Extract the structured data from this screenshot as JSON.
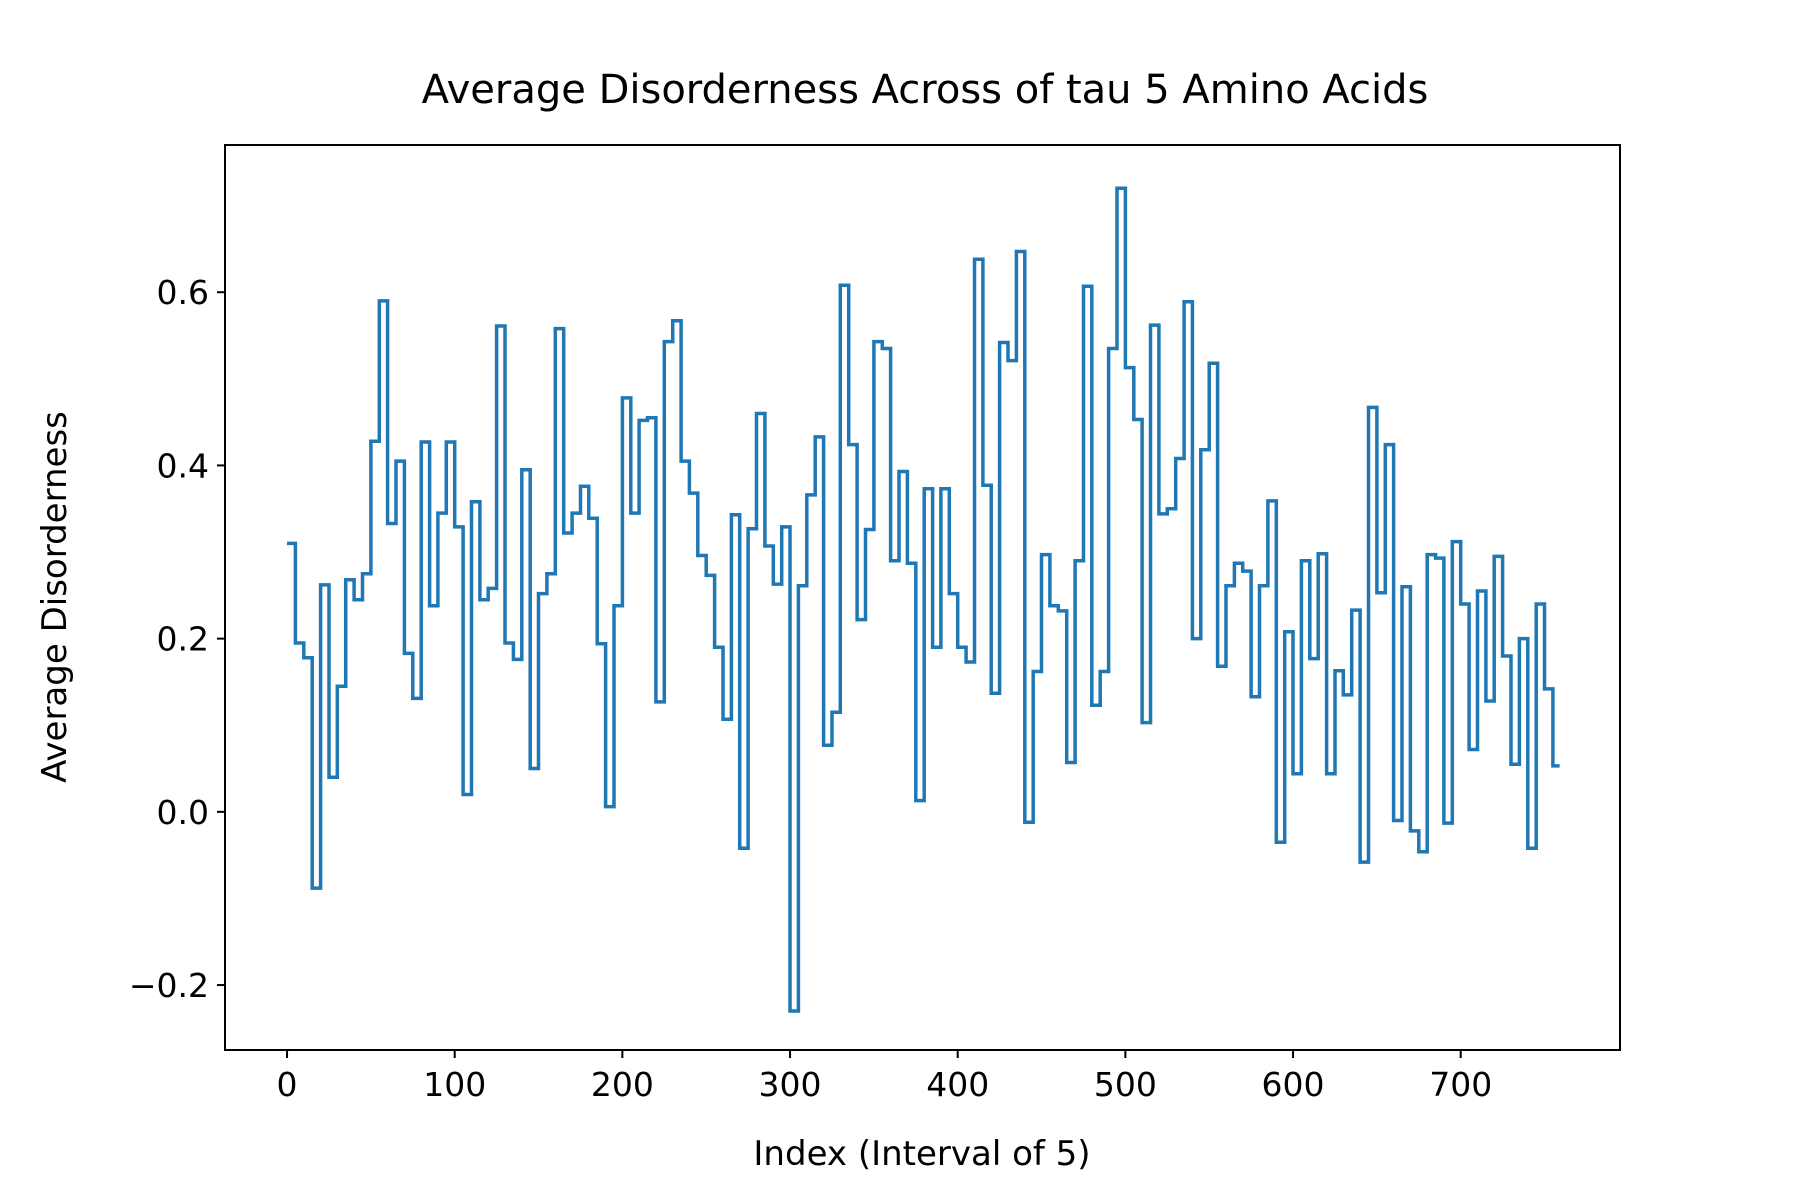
{
  "chart_data": {
    "type": "line",
    "title": "Average Disorderness Across of tau 5 Amino Acids",
    "xlabel": "Index (Interval of 5)",
    "ylabel": "Average Disorderness",
    "xlim": [
      -37,
      795
    ],
    "ylim": [
      -0.275,
      0.77
    ],
    "xticks": [
      0,
      100,
      200,
      300,
      400,
      500,
      600,
      700
    ],
    "yticks": [
      -0.2,
      0.0,
      0.2,
      0.4,
      0.6
    ],
    "ytick_labels": [
      "−0.2",
      "0.0",
      "0.2",
      "0.4",
      "0.6"
    ],
    "grid": false,
    "color": "#1f77b4",
    "series": [
      {
        "x": [
          0,
          5,
          10,
          15,
          20,
          25,
          30,
          35,
          40,
          45,
          50,
          55,
          60,
          65,
          70,
          75,
          80,
          85,
          90,
          95,
          100,
          105,
          110,
          115,
          120,
          125,
          130,
          135,
          140,
          145,
          150,
          155,
          160,
          165,
          170,
          175,
          180,
          185,
          190,
          195,
          200,
          205,
          210,
          215,
          220,
          225,
          230,
          235,
          240,
          245,
          250,
          255,
          260,
          265,
          270,
          275,
          280,
          285,
          290,
          295,
          300,
          305,
          310,
          315,
          320,
          325,
          330,
          335,
          340,
          345,
          350,
          355,
          360,
          365,
          370,
          375,
          380,
          385,
          390,
          395,
          400,
          405,
          410,
          415,
          420,
          425,
          430,
          435,
          440,
          445,
          450,
          455,
          460,
          465,
          470,
          475,
          480,
          485,
          490,
          495,
          500,
          505,
          510,
          515,
          520,
          525,
          530,
          535,
          540,
          545,
          550,
          555,
          560,
          565,
          570,
          575,
          580,
          585,
          590,
          595,
          600,
          605,
          610,
          615,
          620,
          625,
          630,
          635,
          640,
          645,
          650,
          655,
          660,
          665,
          670,
          675,
          680,
          685,
          690,
          695,
          700,
          705,
          710,
          715,
          720,
          725,
          730,
          735,
          740,
          745,
          750,
          755
        ],
        "values": [
          0.31,
          0.195,
          0.178,
          -0.088,
          0.262,
          0.04,
          0.145,
          0.268,
          0.245,
          0.275,
          0.428,
          0.59,
          0.333,
          0.405,
          0.183,
          0.131,
          0.427,
          0.238,
          0.345,
          0.427,
          0.329,
          0.02,
          0.358,
          0.245,
          0.258,
          0.561,
          0.195,
          0.176,
          0.395,
          0.05,
          0.252,
          0.275,
          0.558,
          0.322,
          0.345,
          0.376,
          0.339,
          0.194,
          0.006,
          0.238,
          0.478,
          0.345,
          0.452,
          0.455,
          0.127,
          0.543,
          0.567,
          0.405,
          0.368,
          0.296,
          0.273,
          0.19,
          0.107,
          0.343,
          -0.042,
          0.327,
          0.46,
          0.307,
          0.263,
          0.329,
          -0.23,
          0.261,
          0.366,
          0.433,
          0.077,
          0.115,
          0.608,
          0.424,
          0.222,
          0.326,
          0.543,
          0.535,
          0.29,
          0.393,
          0.287,
          0.013,
          0.373,
          0.19,
          0.373,
          0.252,
          0.19,
          0.173,
          0.638,
          0.377,
          0.137,
          0.542,
          0.521,
          0.647,
          -0.012,
          0.162,
          0.297,
          0.238,
          0.232,
          0.057,
          0.29,
          0.607,
          0.123,
          0.162,
          0.535,
          0.72,
          0.513,
          0.453,
          0.103,
          0.562,
          0.344,
          0.35,
          0.408,
          0.589,
          0.2,
          0.418,
          0.518,
          0.168,
          0.261,
          0.287,
          0.278,
          0.133,
          0.261,
          0.359,
          -0.035,
          0.208,
          0.044,
          0.29,
          0.177,
          0.298,
          0.044,
          0.163,
          0.135,
          0.233,
          -0.058,
          0.467,
          0.253,
          0.424,
          -0.01,
          0.26,
          -0.022,
          -0.046,
          0.297,
          0.293,
          -0.013,
          0.312,
          0.24,
          0.072,
          0.255,
          0.128,
          0.295,
          0.18,
          0.055,
          0.2,
          -0.042,
          0.24,
          0.142,
          0.053
        ]
      }
    ]
  }
}
